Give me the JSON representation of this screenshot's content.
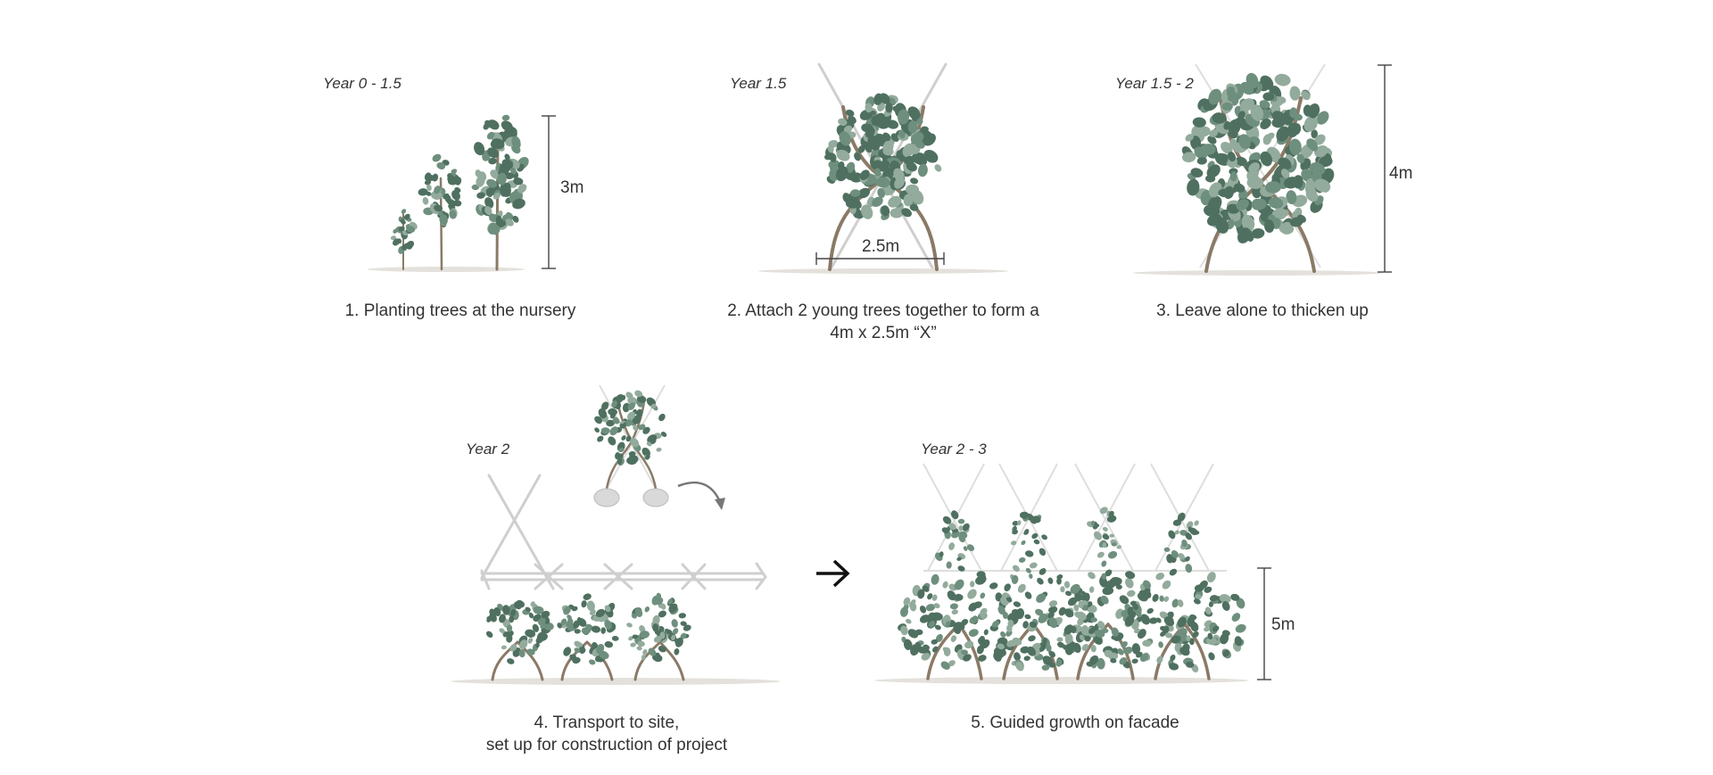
{
  "stages": [
    {
      "year": "Year 0 - 1.5",
      "caption_lines": [
        "1. Planting trees at the nursery"
      ],
      "dimension": "3m"
    },
    {
      "year": "Year 1.5",
      "caption_lines": [
        "2. Attach 2 young trees together to form a",
        "4m x 2.5m “X”"
      ],
      "dimension": "2.5m"
    },
    {
      "year": "Year 1.5 - 2",
      "caption_lines": [
        "3. Leave alone to thicken up"
      ],
      "dimension": "4m"
    },
    {
      "year": "Year 2",
      "caption_lines": [
        "4. Transport to site,",
        "set up for construction of project"
      ]
    },
    {
      "year": "Year 2 - 3",
      "caption_lines": [
        "5. Guided growth on facade"
      ],
      "dimension": "5m"
    }
  ],
  "colors": {
    "leaf_dark": "#4f7060",
    "leaf_mid": "#6f8f7e",
    "trunk": "#8a7a66",
    "text": "#333333"
  }
}
